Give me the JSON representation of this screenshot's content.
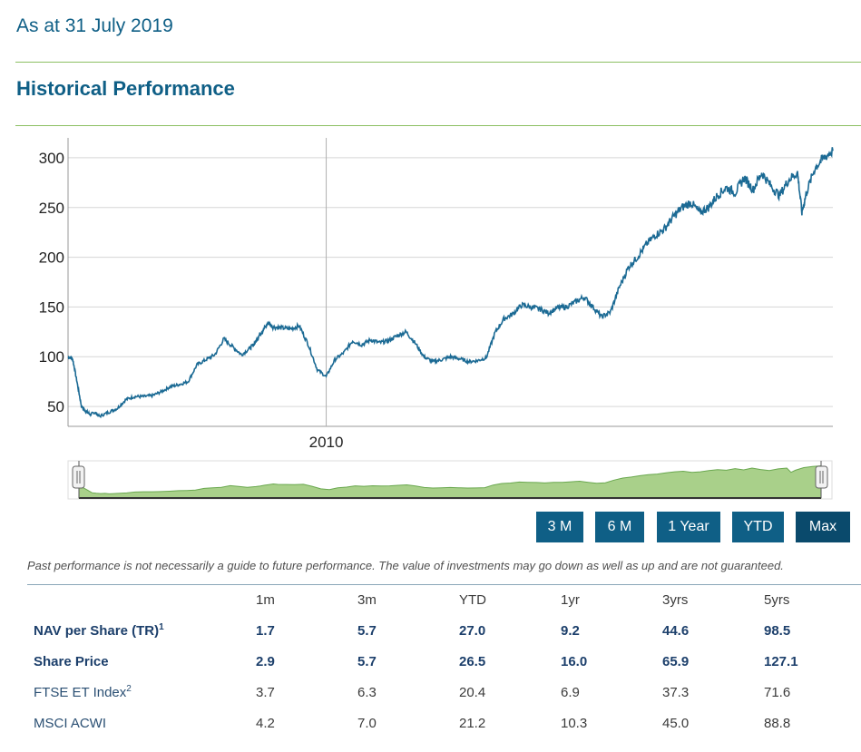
{
  "as_at": "As at 31 July 2019",
  "section_title": "Historical Performance",
  "chart_data": {
    "type": "line",
    "title": "",
    "xlabel": "",
    "ylabel": "",
    "x_ticks": [
      "2010"
    ],
    "y_ticks": [
      50,
      100,
      150,
      200,
      250,
      300
    ],
    "ylim": [
      30,
      320
    ],
    "grid": true,
    "legend": "none",
    "series": [
      {
        "x": [
          "2005-03",
          "2005-04",
          "2005-05",
          "2005-06",
          "2005-07",
          "2005-08",
          "2005-09",
          "2005-10",
          "2005-12",
          "2006-02",
          "2006-04",
          "2006-06",
          "2006-08",
          "2006-10",
          "2006-12",
          "2007-02",
          "2007-04",
          "2007-06",
          "2007-08",
          "2007-10",
          "2007-12",
          "2008-02",
          "2008-04",
          "2008-06",
          "2008-08",
          "2008-09",
          "2008-10",
          "2008-11",
          "2008-12",
          "2009-01",
          "2009-03",
          "2009-05",
          "2009-07",
          "2009-09",
          "2009-11",
          "2010-01",
          "2010-03",
          "2010-05",
          "2010-07",
          "2010-09",
          "2010-11",
          "2011-01",
          "2011-03",
          "2011-05",
          "2011-07",
          "2011-09",
          "2011-11",
          "2012-01",
          "2012-03",
          "2012-05",
          "2012-07",
          "2012-09",
          "2012-11",
          "2013-01",
          "2013-03",
          "2013-05",
          "2013-07",
          "2013-09",
          "2013-11",
          "2014-01",
          "2014-03",
          "2014-05",
          "2014-07",
          "2014-09",
          "2014-11",
          "2015-01",
          "2015-03",
          "2015-05",
          "2015-07",
          "2015-09",
          "2015-11",
          "2016-01",
          "2016-03",
          "2016-05",
          "2016-07",
          "2016-09",
          "2016-11",
          "2017-01",
          "2017-03",
          "2017-05",
          "2017-07",
          "2017-09",
          "2017-11",
          "2018-01",
          "2018-03",
          "2018-05",
          "2018-07",
          "2018-09",
          "2018-11",
          "2018-12",
          "2019-01",
          "2019-03",
          "2019-05",
          "2019-07"
        ],
        "y": [
          100,
          98,
          75,
          50,
          45,
          42,
          44,
          40,
          44,
          48,
          57,
          60,
          60,
          61,
          65,
          70,
          72,
          75,
          92,
          97,
          102,
          118,
          110,
          102,
          109,
          114,
          122,
          128,
          134,
          130,
          129,
          128,
          131,
          112,
          87,
          80,
          97,
          104,
          116,
          112,
          117,
          114,
          116,
          121,
          125,
          114,
          100,
          95,
          97,
          100,
          98,
          95,
          96,
          99,
          124,
          138,
          143,
          152,
          150,
          148,
          144,
          149,
          150,
          155,
          160,
          150,
          140,
          145,
          170,
          190,
          200,
          213,
          222,
          228,
          240,
          250,
          255,
          245,
          250,
          262,
          270,
          265,
          280,
          268,
          285,
          272,
          262,
          278,
          285,
          245,
          265,
          290,
          300,
          307
        ]
      }
    ],
    "navigator": {
      "type": "area",
      "color": "#8cc063"
    }
  },
  "range_buttons": [
    {
      "label": "3 M"
    },
    {
      "label": "6 M"
    },
    {
      "label": "1 Year"
    },
    {
      "label": "YTD"
    },
    {
      "label": "Max"
    }
  ],
  "disclaimer": "Past performance is not necessarily a guide to future performance. The value of investments may go down as well as up and are not guaranteed.",
  "table": {
    "headers": [
      "",
      "1m",
      "3m",
      "YTD",
      "1yr",
      "3yrs",
      "5yrs"
    ],
    "rows": [
      {
        "label": "NAV per Share (TR)",
        "sup": "1",
        "values": [
          "1.7",
          "5.7",
          "27.0",
          "9.2",
          "44.6",
          "98.5"
        ]
      },
      {
        "label": "Share Price",
        "sup": "",
        "values": [
          "2.9",
          "5.7",
          "26.5",
          "16.0",
          "65.9",
          "127.1"
        ]
      },
      {
        "label": "FTSE ET Index",
        "sup": "2",
        "values": [
          "3.7",
          "6.3",
          "20.4",
          "6.9",
          "37.3",
          "71.6"
        ]
      },
      {
        "label": "MSCI ACWI",
        "sup": "",
        "values": [
          "4.2",
          "7.0",
          "21.2",
          "10.3",
          "45.0",
          "88.8"
        ]
      }
    ]
  },
  "colors": {
    "brand_blue": "#0f5f86",
    "accent_green": "#8cc063",
    "line": "#1b6a94",
    "button_bg": "#0f5f86"
  }
}
